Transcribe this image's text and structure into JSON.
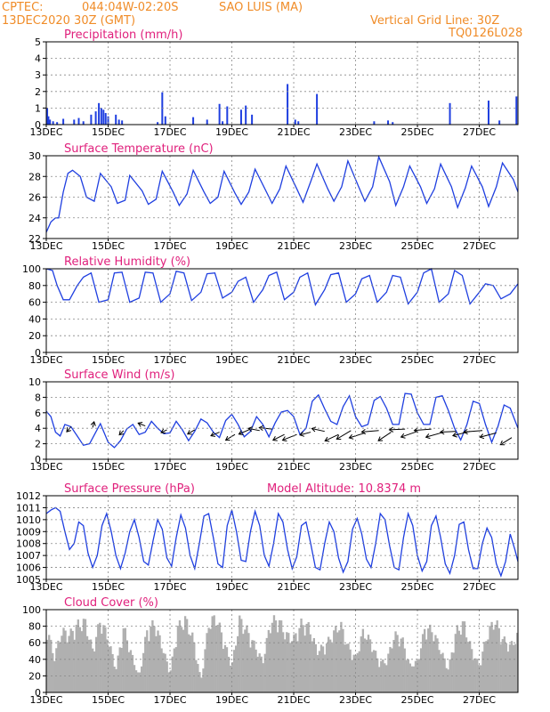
{
  "header": {
    "source": "CPTEC:",
    "coords": "044:04W-02:20S",
    "station": "SAO LUIS (MA)",
    "run": "13DEC2020 30Z (GMT)",
    "vgrid": "Vertical Grid Line: 30Z",
    "code": "TQ0126L028"
  },
  "colors": {
    "header": "#f08c28",
    "title": "#e0207c",
    "series": "#1f3fe0",
    "cloud": "#b0b0b0",
    "wind_arrow": "#000000"
  },
  "date_ticks": [
    "13DEC",
    "15DEC",
    "17DEC",
    "19DEC",
    "21DEC",
    "23DEC",
    "25DEC",
    "27DEC"
  ],
  "chart_data": [
    {
      "type": "bar",
      "title": "Precipitation (mm/h)",
      "ylim": [
        0,
        5
      ],
      "yticks": [
        "0",
        "1",
        "2",
        "3",
        "4",
        "5"
      ],
      "x_unit": "days since 13DEC",
      "xlim": [
        0,
        15.25
      ],
      "grid": true,
      "x": [
        0.03,
        0.07,
        0.12,
        0.22,
        0.35,
        0.55,
        0.9,
        1.05,
        1.2,
        1.45,
        1.6,
        1.7,
        1.78,
        1.85,
        1.92,
        2.0,
        2.25,
        2.35,
        2.45,
        3.6,
        3.75,
        3.85,
        4.75,
        5.2,
        5.6,
        5.7,
        5.85,
        6.3,
        6.45,
        6.65,
        7.8,
        8.05,
        8.15,
        8.75,
        10.6,
        11.05,
        11.2,
        13.05,
        14.3,
        14.65,
        15.2
      ],
      "values": [
        1.0,
        0.5,
        0.3,
        0.2,
        0.15,
        0.35,
        0.3,
        0.4,
        0.2,
        0.6,
        0.8,
        1.3,
        1.0,
        0.9,
        0.7,
        0.5,
        0.6,
        0.3,
        0.25,
        0.15,
        1.95,
        0.5,
        0.45,
        0.3,
        1.25,
        0.2,
        1.1,
        0.9,
        1.15,
        0.6,
        2.45,
        0.3,
        0.2,
        1.85,
        0.2,
        0.25,
        0.15,
        1.3,
        1.45,
        0.25,
        1.7
      ]
    },
    {
      "type": "line",
      "title": "Surface Temperature (nC)",
      "ylim": [
        22,
        30
      ],
      "yticks": [
        "22",
        "24",
        "26",
        "28",
        "30"
      ],
      "xlim": [
        0,
        15.25
      ],
      "grid": true,
      "x": [
        0,
        0.15,
        0.3,
        0.4,
        0.55,
        0.7,
        0.85,
        1.1,
        1.3,
        1.55,
        1.75,
        2.1,
        2.3,
        2.55,
        2.7,
        3.1,
        3.3,
        3.55,
        3.75,
        4.1,
        4.3,
        4.55,
        4.75,
        5.1,
        5.3,
        5.55,
        5.75,
        6.1,
        6.3,
        6.55,
        6.75,
        7.1,
        7.3,
        7.55,
        7.75,
        8.1,
        8.3,
        8.55,
        8.75,
        9.1,
        9.3,
        9.55,
        9.75,
        10.1,
        10.3,
        10.55,
        10.75,
        11.1,
        11.3,
        11.55,
        11.75,
        12.1,
        12.3,
        12.55,
        12.75,
        13.1,
        13.3,
        13.55,
        13.75,
        14.1,
        14.3,
        14.55,
        14.75,
        15.1,
        15.25
      ],
      "values": [
        22.6,
        23.6,
        24.0,
        24.0,
        26.5,
        28.3,
        28.6,
        28.0,
        26.0,
        25.6,
        28.3,
        27.0,
        25.4,
        25.7,
        28.1,
        26.6,
        25.3,
        25.8,
        28.5,
        26.5,
        25.2,
        26.3,
        28.6,
        26.5,
        25.4,
        26.0,
        28.5,
        26.4,
        25.3,
        26.5,
        28.7,
        26.6,
        25.4,
        26.8,
        29.0,
        26.8,
        25.5,
        27.5,
        29.2,
        26.8,
        25.6,
        27.0,
        29.5,
        27.0,
        25.6,
        27.0,
        29.9,
        27.5,
        25.2,
        27.0,
        29.0,
        27.0,
        25.4,
        26.8,
        29.2,
        27.0,
        25.0,
        26.9,
        29.0,
        27.0,
        25.1,
        27.0,
        29.3,
        27.7,
        26.5
      ]
    },
    {
      "type": "line",
      "title": "Relative Humidity (%)",
      "ylim": [
        0,
        100
      ],
      "yticks": [
        "0",
        "20",
        "40",
        "60",
        "80",
        "100"
      ],
      "xlim": [
        0,
        15.25
      ],
      "grid": true,
      "x": [
        0,
        0.2,
        0.35,
        0.55,
        0.75,
        1.0,
        1.2,
        1.45,
        1.7,
        2.0,
        2.2,
        2.45,
        2.7,
        3.0,
        3.2,
        3.45,
        3.7,
        4.0,
        4.2,
        4.45,
        4.7,
        5.0,
        5.2,
        5.45,
        5.7,
        6.0,
        6.2,
        6.45,
        6.7,
        7.0,
        7.2,
        7.45,
        7.7,
        8.0,
        8.2,
        8.45,
        8.7,
        9.0,
        9.2,
        9.45,
        9.7,
        10.0,
        10.2,
        10.45,
        10.7,
        11.0,
        11.2,
        11.45,
        11.7,
        12.0,
        12.2,
        12.45,
        12.7,
        13.0,
        13.2,
        13.45,
        13.7,
        14.0,
        14.2,
        14.45,
        14.7,
        15.0,
        15.25
      ],
      "values": [
        100,
        98,
        80,
        63,
        63,
        80,
        90,
        95,
        60,
        63,
        95,
        96,
        60,
        65,
        96,
        95,
        60,
        70,
        97,
        95,
        62,
        72,
        94,
        95,
        65,
        72,
        85,
        90,
        60,
        75,
        92,
        96,
        63,
        72,
        90,
        95,
        57,
        75,
        93,
        95,
        60,
        70,
        88,
        92,
        60,
        72,
        92,
        90,
        58,
        72,
        95,
        100,
        60,
        70,
        98,
        92,
        58,
        72,
        82,
        80,
        64,
        70,
        82
      ]
    },
    {
      "type": "line",
      "title": "Surface Wind (m/s)",
      "ylim": [
        0,
        10
      ],
      "yticks": [
        "0",
        "2",
        "4",
        "6",
        "8",
        "10"
      ],
      "xlim": [
        0,
        15.25
      ],
      "grid": true,
      "x": [
        0,
        0.15,
        0.3,
        0.45,
        0.6,
        0.8,
        1.0,
        1.2,
        1.4,
        1.6,
        1.75,
        2.0,
        2.2,
        2.4,
        2.6,
        2.8,
        3.0,
        3.2,
        3.4,
        3.6,
        3.8,
        4.0,
        4.2,
        4.4,
        4.6,
        4.8,
        5.0,
        5.2,
        5.4,
        5.6,
        5.8,
        6.0,
        6.2,
        6.4,
        6.6,
        6.8,
        7.0,
        7.2,
        7.4,
        7.6,
        7.8,
        8.0,
        8.2,
        8.4,
        8.6,
        8.8,
        9.0,
        9.2,
        9.4,
        9.6,
        9.8,
        10.0,
        10.2,
        10.4,
        10.6,
        10.8,
        11.0,
        11.2,
        11.4,
        11.6,
        11.8,
        12.0,
        12.2,
        12.4,
        12.6,
        12.8,
        13.0,
        13.2,
        13.4,
        13.6,
        13.8,
        14.0,
        14.2,
        14.4,
        14.6,
        14.8,
        15.0,
        15.25
      ],
      "values": [
        6.2,
        5.5,
        3.5,
        3.0,
        4.5,
        4.2,
        3.0,
        1.8,
        2.0,
        3.5,
        4.6,
        2.2,
        1.5,
        2.4,
        3.9,
        4.5,
        3.2,
        3.5,
        4.9,
        4.0,
        3.3,
        3.4,
        4.9,
        3.8,
        2.4,
        3.6,
        5.2,
        4.7,
        3.5,
        2.8,
        5.0,
        5.8,
        4.5,
        2.9,
        3.6,
        5.5,
        4.5,
        2.9,
        4.7,
        6.1,
        6.3,
        5.5,
        3.2,
        4.0,
        7.5,
        8.3,
        6.5,
        4.9,
        4.5,
        6.8,
        8.2,
        5.5,
        4.2,
        4.5,
        7.6,
        8.1,
        6.6,
        4.5,
        4.5,
        8.5,
        8.4,
        6.0,
        4.5,
        4.5,
        8.0,
        8.2,
        6.3,
        4.0,
        2.5,
        4.5,
        7.5,
        7.2,
        4.5,
        2.2,
        4.2,
        7.0,
        6.6,
        4.0
      ],
      "wind_arrows": {
        "x": [
          0.8,
          1.5,
          2.5,
          3.2,
          3.9,
          4.8,
          5.6,
          6.1,
          6.55,
          6.9,
          7.3,
          7.7,
          8.1,
          8.55,
          9.0,
          9.45,
          9.85,
          10.3,
          10.75,
          11.15,
          11.6,
          12.0,
          12.45,
          12.85,
          13.25,
          13.7,
          14.1,
          14.55,
          15.05
        ],
        "values": [
          4.2,
          4.1,
          3.7,
          4.3,
          3.8,
          3.8,
          3.5,
          3.2,
          3.8,
          3.7,
          3.9,
          3.2,
          3.2,
          3.5,
          3.6,
          3.2,
          3.7,
          3.4,
          3.7,
          3.5,
          3.9,
          3.6,
          3.9,
          3.5,
          3.6,
          3.6,
          3.7,
          3.4,
          2.8
        ],
        "u": [
          -0.6,
          0.2,
          -0.6,
          -1.0,
          -0.8,
          -1.0,
          -1.2,
          -1.3,
          -1.4,
          -1.6,
          -1.8,
          -1.6,
          -2.0,
          -1.5,
          -1.8,
          -1.9,
          -2.0,
          -2.2,
          -2.4,
          -1.8,
          -2.2,
          -2.3,
          -2.4,
          -2.5,
          -2.2,
          -2.4,
          -2.6,
          -2.3,
          -1.6
        ],
        "v": [
          -0.7,
          0.8,
          -0.6,
          0.4,
          -0.4,
          -0.6,
          -0.5,
          -0.8,
          -0.6,
          0.3,
          0.2,
          -0.8,
          -0.8,
          -0.4,
          0.4,
          -0.9,
          -1.2,
          -0.7,
          -0.2,
          -1.2,
          -0.1,
          -0.8,
          -0.2,
          -0.7,
          -0.1,
          -0.6,
          -0.2,
          -0.6,
          -1.0
        ]
      }
    },
    {
      "type": "line",
      "title": "Surface Pressure (hPa)",
      "subtitle": "Model Altitude: 10.8374 m",
      "ylim": [
        1005,
        1012
      ],
      "yticks": [
        "1005",
        "1006",
        "1007",
        "1008",
        "1009",
        "1010",
        "1011",
        "1012"
      ],
      "xlim": [
        0,
        15.25
      ],
      "grid": true,
      "x": [
        0,
        0.15,
        0.3,
        0.45,
        0.6,
        0.75,
        0.9,
        1.05,
        1.2,
        1.35,
        1.5,
        1.65,
        1.8,
        1.95,
        2.1,
        2.25,
        2.4,
        2.55,
        2.7,
        2.85,
        3.0,
        3.15,
        3.3,
        3.45,
        3.6,
        3.75,
        3.9,
        4.05,
        4.2,
        4.35,
        4.5,
        4.65,
        4.8,
        4.95,
        5.1,
        5.25,
        5.4,
        5.55,
        5.7,
        5.85,
        6.0,
        6.15,
        6.3,
        6.45,
        6.6,
        6.75,
        6.9,
        7.05,
        7.2,
        7.35,
        7.5,
        7.65,
        7.8,
        7.95,
        8.1,
        8.25,
        8.4,
        8.55,
        8.7,
        8.85,
        9.0,
        9.15,
        9.3,
        9.45,
        9.6,
        9.75,
        9.9,
        10.05,
        10.2,
        10.35,
        10.5,
        10.65,
        10.8,
        10.95,
        11.1,
        11.25,
        11.4,
        11.55,
        11.7,
        11.85,
        12.0,
        12.15,
        12.3,
        12.45,
        12.6,
        12.75,
        12.9,
        13.05,
        13.2,
        13.35,
        13.5,
        13.65,
        13.8,
        13.95,
        14.1,
        14.25,
        14.4,
        14.55,
        14.7,
        14.85,
        15.0,
        15.15,
        15.25
      ],
      "values": [
        1010.5,
        1010.8,
        1011.0,
        1010.7,
        1009.0,
        1007.5,
        1008.0,
        1009.8,
        1009.5,
        1007.2,
        1006.0,
        1007.0,
        1009.5,
        1010.5,
        1009.0,
        1007.0,
        1005.9,
        1007.2,
        1009.0,
        1010.0,
        1008.5,
        1006.5,
        1006.2,
        1008.2,
        1010.0,
        1009.2,
        1006.8,
        1006.1,
        1008.5,
        1010.4,
        1009.3,
        1007.0,
        1005.9,
        1008.0,
        1010.3,
        1010.5,
        1008.5,
        1006.3,
        1006.0,
        1009.5,
        1010.8,
        1009.0,
        1006.6,
        1006.5,
        1009.0,
        1010.7,
        1009.5,
        1007.0,
        1006.1,
        1008.0,
        1010.5,
        1009.8,
        1007.5,
        1005.9,
        1006.9,
        1009.5,
        1009.8,
        1008.0,
        1006.0,
        1005.8,
        1008.0,
        1009.8,
        1009.0,
        1006.8,
        1005.6,
        1006.5,
        1009.2,
        1010.1,
        1008.8,
        1006.7,
        1006.0,
        1008.0,
        1010.5,
        1010.0,
        1007.8,
        1006.0,
        1005.8,
        1008.5,
        1010.5,
        1009.5,
        1007.0,
        1005.7,
        1006.5,
        1009.5,
        1010.3,
        1008.5,
        1006.3,
        1005.5,
        1007.0,
        1009.6,
        1009.8,
        1007.5,
        1005.9,
        1005.9,
        1008.0,
        1009.3,
        1008.5,
        1006.3,
        1005.3,
        1006.5,
        1008.8,
        1007.5,
        1006.5
      ]
    },
    {
      "type": "area",
      "title": "Cloud Cover (%)",
      "ylim": [
        0,
        100
      ],
      "yticks": [
        "0",
        "20",
        "40",
        "60",
        "80",
        "100"
      ],
      "xlim": [
        0,
        15.25
      ],
      "grid": true,
      "x": [
        0,
        0.25,
        0.5,
        0.75,
        1.0,
        1.25,
        1.5,
        1.75,
        2.0,
        2.25,
        2.5,
        2.75,
        3.0,
        3.25,
        3.5,
        3.75,
        4.0,
        4.25,
        4.5,
        4.75,
        5.0,
        5.25,
        5.5,
        5.75,
        6.0,
        6.25,
        6.5,
        6.75,
        7.0,
        7.25,
        7.5,
        7.75,
        8.0,
        8.25,
        8.5,
        8.75,
        9.0,
        9.25,
        9.5,
        9.75,
        10.0,
        10.25,
        10.5,
        10.75,
        11.0,
        11.25,
        11.5,
        11.75,
        12.0,
        12.25,
        12.5,
        12.75,
        13.0,
        13.25,
        13.5,
        13.75,
        14.0,
        14.25,
        14.5,
        14.75,
        15.0,
        15.25
      ],
      "values": [
        90,
        45,
        80,
        75,
        88,
        92,
        55,
        95,
        70,
        30,
        85,
        50,
        20,
        80,
        90,
        60,
        25,
        85,
        95,
        70,
        15,
        90,
        98,
        65,
        35,
        95,
        80,
        60,
        40,
        92,
        95,
        75,
        70,
        90,
        85,
        55,
        60,
        75,
        90,
        60,
        45,
        80,
        65,
        40,
        40,
        75,
        70,
        35,
        40,
        85,
        80,
        55,
        30,
        80,
        90,
        55,
        35,
        75,
        95,
        70,
        60,
        75
      ]
    }
  ]
}
